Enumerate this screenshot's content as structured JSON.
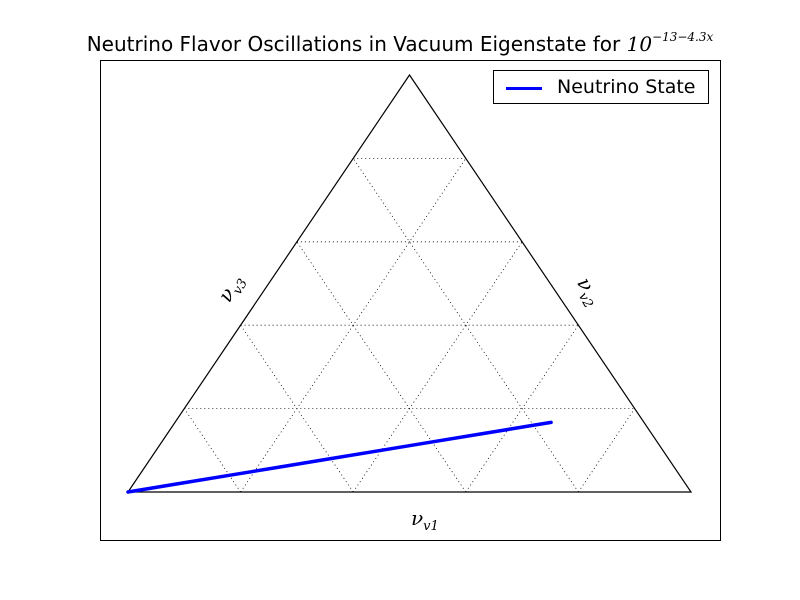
{
  "title": {
    "text": "Neutrino Flavor Oscillations in Vacuum Eigenstate for ",
    "math_base": "10",
    "math_exponent": "−13−4.3x"
  },
  "legend": {
    "label": "Neutrino State",
    "location": "upper right"
  },
  "colors": {
    "series": "#0000ff",
    "frame": "#000000",
    "grid": "#000000"
  },
  "chart_data": {
    "type": "ternary-line",
    "title": "Neutrino Flavor Oscillations in Vacuum Eigenstate for 10^{-13-4.3x}",
    "axes": {
      "bottom": {
        "base": "ν",
        "subscript": "v1"
      },
      "left": {
        "base": "ν",
        "subscript": "v3"
      },
      "right": {
        "base": "ν",
        "subscript": "v2"
      }
    },
    "scale": 1.0,
    "grid": true,
    "grid_step": 0.2,
    "series": [
      {
        "name": "Neutrino State",
        "points": [
          {
            "v1": 1.0,
            "v2": 0.0,
            "v3": 0.0
          },
          {
            "v1": 0.9,
            "v2": 0.08,
            "v3": 0.02
          },
          {
            "v1": 0.8,
            "v2": 0.16,
            "v3": 0.04
          },
          {
            "v1": 0.7,
            "v2": 0.24,
            "v3": 0.06
          },
          {
            "v1": 0.6,
            "v2": 0.32,
            "v3": 0.08
          },
          {
            "v1": 0.5,
            "v2": 0.4,
            "v3": 0.1
          },
          {
            "v1": 0.4,
            "v2": 0.48,
            "v3": 0.12
          },
          {
            "v1": 0.3,
            "v2": 0.56,
            "v3": 0.14
          },
          {
            "v1": 0.2,
            "v2": 0.64,
            "v3": 0.16
          },
          {
            "v1": 0.165,
            "v2": 0.668,
            "v3": 0.167
          }
        ]
      }
    ]
  }
}
